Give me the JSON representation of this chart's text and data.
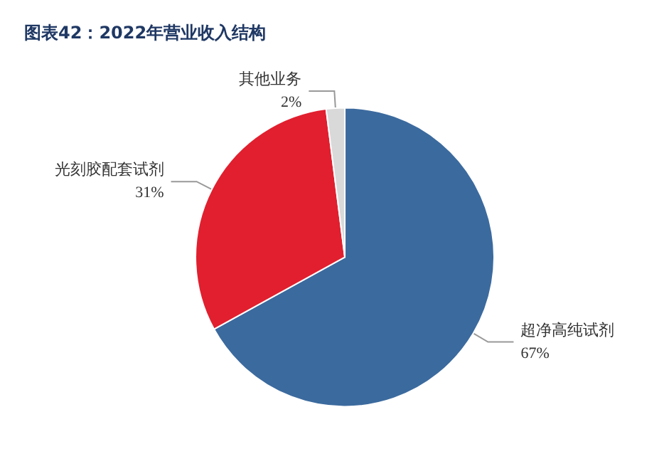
{
  "chart_data": {
    "type": "pie",
    "title": "图表42：2022年营业收入结构",
    "categories": [
      "超净高纯试剂",
      "光刻胶配套试剂",
      "其他业务"
    ],
    "values": [
      67,
      31,
      2
    ],
    "colors": [
      "#3b6a9e",
      "#e11f2e",
      "#d9d9d9"
    ],
    "value_labels": [
      "67%",
      "31%",
      "2%"
    ],
    "legend": false
  }
}
